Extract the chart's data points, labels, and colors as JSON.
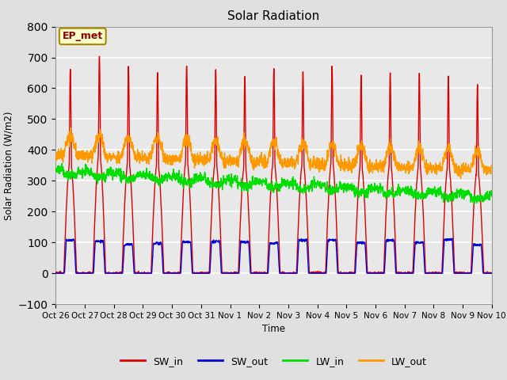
{
  "title": "Solar Radiation",
  "ylabel": "Solar Radiation (W/m2)",
  "xlabel": "Time",
  "ylim": [
    -100,
    800
  ],
  "yticks": [
    -100,
    0,
    100,
    200,
    300,
    400,
    500,
    600,
    700,
    800
  ],
  "background_color": "#e0e0e0",
  "plot_bg_color": "#e8e8e8",
  "grid_color": "#ffffff",
  "series": {
    "SW_in": {
      "color": "#dd0000",
      "lw": 1.0
    },
    "SW_out": {
      "color": "#0000dd",
      "lw": 1.0
    },
    "LW_in": {
      "color": "#00dd00",
      "lw": 1.0
    },
    "LW_out": {
      "color": "#ff9900",
      "lw": 1.0
    }
  },
  "n_days": 15,
  "points_per_day": 144,
  "tick_labels": [
    "Oct 26",
    "Oct 27",
    "Oct 28",
    "Oct 29",
    "Oct 30",
    "Oct 31",
    "Nov 1",
    "Nov 2",
    "Nov 3",
    "Nov 4",
    "Nov 5",
    "Nov 6",
    "Nov 7",
    "Nov 8",
    "Nov 9",
    "Nov 10"
  ],
  "annotation_text": "EP_met",
  "annotation_bg": "#ffffcc",
  "annotation_border": "#aa8800"
}
